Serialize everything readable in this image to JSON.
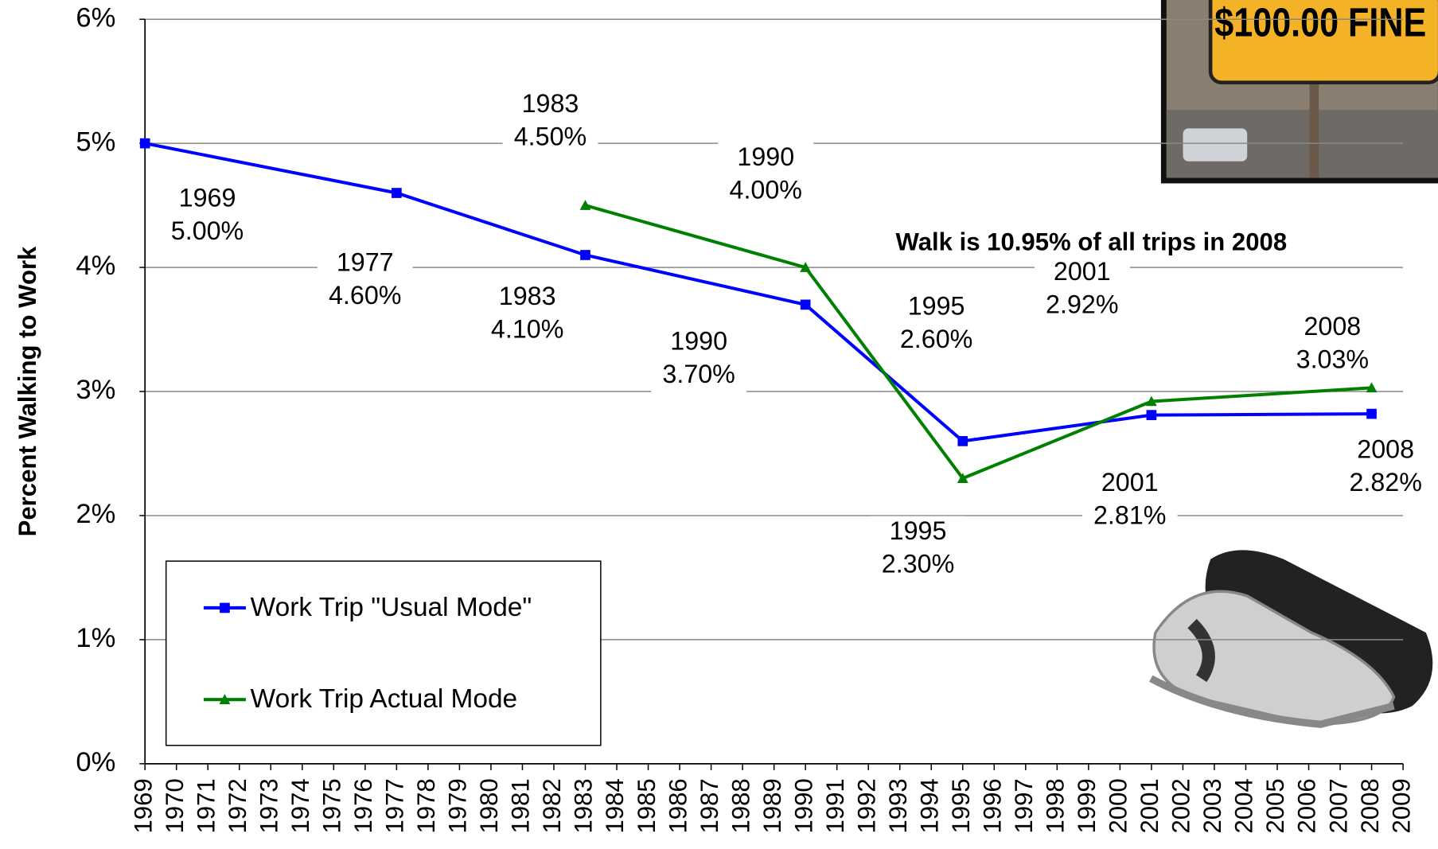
{
  "chart_data": {
    "type": "line",
    "ylabel": "Percent Walking to Work",
    "annotation": "Walk is 10.95% of all trips in 2008",
    "photo_text": "$100.00 FINE",
    "xlim": [
      1969,
      2009
    ],
    "xticks": [
      1969,
      1970,
      1971,
      1972,
      1973,
      1974,
      1975,
      1976,
      1977,
      1978,
      1979,
      1980,
      1981,
      1982,
      1983,
      1984,
      1985,
      1986,
      1987,
      1988,
      1989,
      1990,
      1991,
      1992,
      1993,
      1994,
      1995,
      1996,
      1997,
      1998,
      1999,
      2000,
      2001,
      2002,
      2003,
      2004,
      2005,
      2006,
      2007,
      2008,
      2009
    ],
    "ylim": [
      0,
      6
    ],
    "yticks": [
      {
        "value": 0,
        "label": "0%"
      },
      {
        "value": 1,
        "label": "1%"
      },
      {
        "value": 2,
        "label": "2%"
      },
      {
        "value": 3,
        "label": "3%"
      },
      {
        "value": 4,
        "label": "4%"
      },
      {
        "value": 5,
        "label": "5%"
      },
      {
        "value": 6,
        "label": "6%"
      }
    ],
    "grid": true,
    "legend": "lower left",
    "series": [
      {
        "name": "Work Trip \"Usual Mode\"",
        "color": "#0000ff",
        "marker": "square",
        "x": [
          1969,
          1977,
          1983,
          1990,
          1995,
          2001,
          2008
        ],
        "values": [
          5.0,
          4.6,
          4.1,
          3.7,
          2.6,
          2.81,
          2.82
        ],
        "value_labels": [
          "5.00%",
          "4.60%",
          "4.10%",
          "3.70%",
          "2.60%",
          "2.81%",
          "2.82%"
        ]
      },
      {
        "name": "Work Trip Actual Mode",
        "color": "#008000",
        "marker": "triangle",
        "x": [
          1983,
          1990,
          1995,
          2001,
          2008
        ],
        "values": [
          4.5,
          4.0,
          2.3,
          2.92,
          3.03
        ],
        "value_labels": [
          "4.50%",
          "4.00%",
          "2.30%",
          "2.92%",
          "3.03%"
        ]
      }
    ]
  }
}
